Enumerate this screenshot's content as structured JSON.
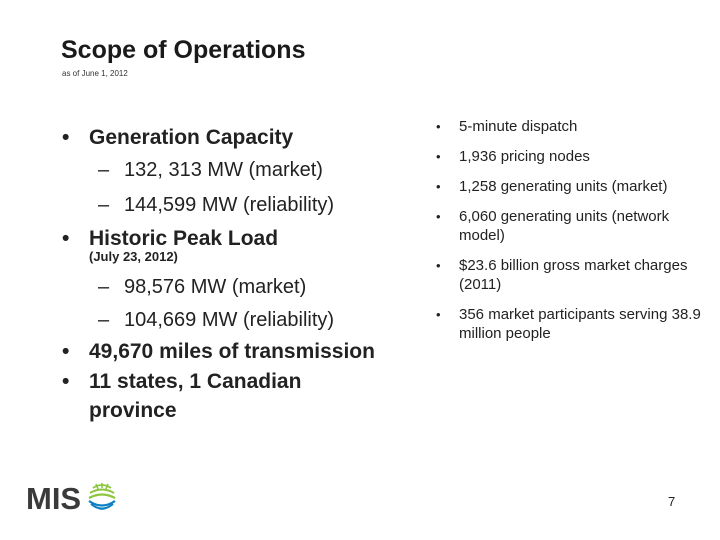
{
  "slide": {
    "title": "Scope of Operations",
    "subtitle": "as of June 1, 2012",
    "page_number": "7"
  },
  "left": {
    "generation_capacity": "Generation Capacity",
    "gen_market": "132, 313 MW (market)",
    "gen_reliability": "144,599 MW (reliability)",
    "historic_peak": "Historic Peak Load",
    "peak_date": "(July 23, 2012)",
    "peak_market": "98,576 MW (market)",
    "peak_reliability": "104,669 MW (reliability)",
    "transmission": "49,670 miles of transmission",
    "states": "11 states, 1 Canadian province"
  },
  "right": {
    "items": [
      "5-minute dispatch",
      "1,936 pricing nodes",
      "1,258 generating units (market)",
      "6,060 generating units (network model)",
      "$23.6 billion gross market charges (2011)",
      "356 market participants serving 38.9 million people"
    ]
  },
  "logo": {
    "text": "MIS",
    "icon": "sunburst-globe-icon",
    "colors": {
      "text": "#3a3a3a",
      "green": "#8cc63f",
      "blue": "#0b7fc1"
    }
  },
  "glyphs": {
    "bullet": "•",
    "dash": "–"
  }
}
